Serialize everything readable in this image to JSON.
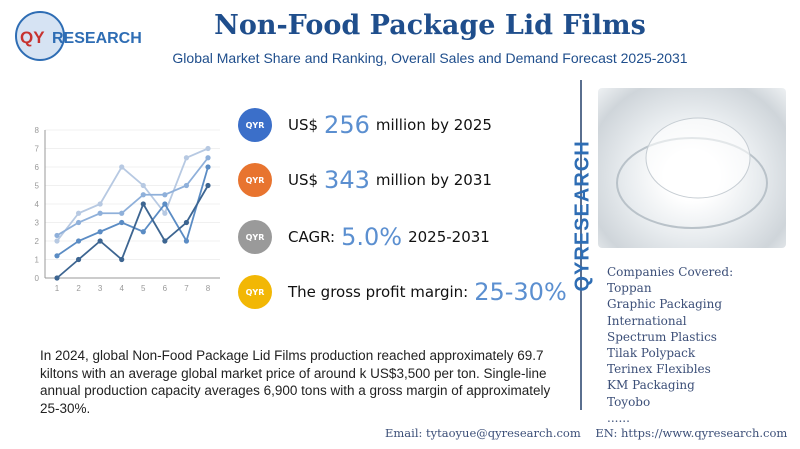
{
  "logo": {
    "text": "QYRESEARCH"
  },
  "header": {
    "title": "Non-Food Package Lid Films",
    "subtitle": "Global Market Share and Ranking, Overall Sales and Demand Forecast 2025-2031"
  },
  "kpis": [
    {
      "prefix": "US$",
      "value": "256",
      "suffix": "million by 2025",
      "icon_color": "#3b6fc9"
    },
    {
      "prefix": "US$",
      "value": "343",
      "suffix": "million by 2031",
      "icon_color": "#e8742f"
    },
    {
      "prefix": "CAGR:",
      "value": "5.0%",
      "suffix": "2025-2031",
      "icon_color": "#9a9a9a"
    },
    {
      "prefix": "The gross profit margin:",
      "value": "25-30%",
      "suffix": "",
      "icon_color": "#f2b705"
    }
  ],
  "brand_vertical": "QYRESEARCH",
  "companies": {
    "heading": "Companies Covered:",
    "items": [
      "Toppan",
      "Graphic Packaging",
      "International",
      "Spectrum Plastics",
      "Tilak Polypack",
      "Terinex Flexibles",
      "KM Packaging",
      "Toyobo",
      "......"
    ]
  },
  "paragraph": "In 2024, global Non-Food Package Lid Films production reached approximately 69.7 kiltons with an average global market price of around k US$3,500 per ton. Single-line annual production capacity averages 6,900 tons with a gross margin of approximately 25-30%.",
  "footer": {
    "email": "Email:  tytaoyue@qyresearch.com",
    "web": "EN: https://www.qyresearch.com"
  },
  "chart_data": {
    "type": "line",
    "x": [
      1,
      2,
      3,
      4,
      5,
      6,
      7,
      8
    ],
    "ylim": [
      0,
      8
    ],
    "yticks": [
      0,
      1,
      2,
      3,
      4,
      5,
      6,
      7,
      8
    ],
    "grid": true,
    "series": [
      {
        "values": [
          2,
          3.5,
          4,
          6,
          5,
          3.5,
          6.5,
          7
        ],
        "color": "#b7c9e2"
      },
      {
        "values": [
          2.3,
          3,
          3.5,
          3.5,
          4.5,
          4.5,
          5,
          6.5
        ],
        "color": "#8fb0da"
      },
      {
        "values": [
          1.2,
          2,
          2.5,
          3,
          2.5,
          4,
          2,
          6
        ],
        "color": "#5b8cc4"
      },
      {
        "values": [
          0,
          1,
          2,
          1,
          4,
          2,
          3,
          5
        ],
        "color": "#3d6591"
      }
    ]
  }
}
